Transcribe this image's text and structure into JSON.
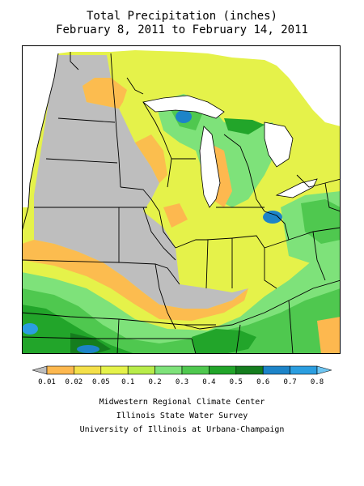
{
  "title_line1": "Total Precipitation (inches)",
  "title_line2": "February 8, 2011 to February 14, 2011",
  "legend": {
    "ticks": [
      "0.01",
      "0.02",
      "0.05",
      "0.1",
      "0.2",
      "0.3",
      "0.4",
      "0.5",
      "0.6",
      "0.7",
      "0.8"
    ],
    "colors": [
      "#bebebe",
      "#fdb84f",
      "#f4e04a",
      "#e5f24a",
      "#b8ec4a",
      "#7ee27a",
      "#4fc84f",
      "#22a52a",
      "#157d1e",
      "#1d84c8",
      "#2b9ee0",
      "#6ec6f3"
    ]
  },
  "colors": {
    "no_precip": "#bebebe",
    "p001": "#fdb84f",
    "p002": "#f4e04a",
    "p005": "#e5f24a",
    "p01": "#b8ec4a",
    "p02": "#7ee27a",
    "p03": "#4fc84f",
    "p04": "#22a52a",
    "p05": "#157d1e",
    "p06": "#1d84c8",
    "p07": "#2b9ee0",
    "water": "#ffffff"
  },
  "credits": {
    "line1": "Midwestern Regional Climate Center",
    "line2": "Illinois State Water Survey",
    "line3": "University of Illinois at Urbana-Champaign"
  }
}
